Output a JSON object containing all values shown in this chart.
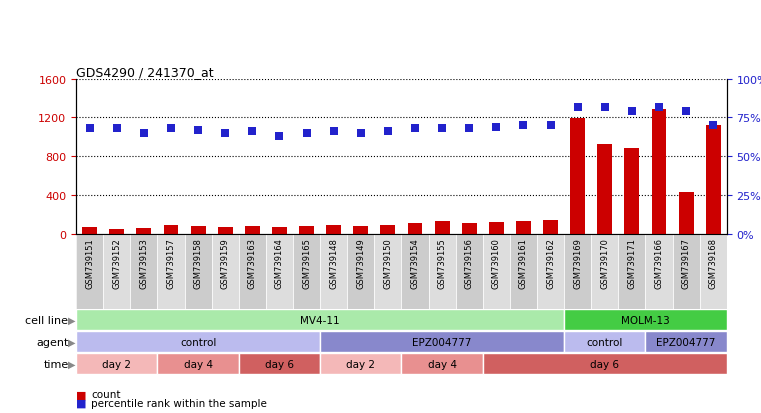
{
  "title": "GDS4290 / 241370_at",
  "samples": [
    "GSM739151",
    "GSM739152",
    "GSM739153",
    "GSM739157",
    "GSM739158",
    "GSM739159",
    "GSM739163",
    "GSM739164",
    "GSM739165",
    "GSM739148",
    "GSM739149",
    "GSM739150",
    "GSM739154",
    "GSM739155",
    "GSM739156",
    "GSM739160",
    "GSM739161",
    "GSM739162",
    "GSM739169",
    "GSM739170",
    "GSM739171",
    "GSM739166",
    "GSM739167",
    "GSM739168"
  ],
  "counts": [
    70,
    50,
    60,
    90,
    80,
    70,
    75,
    65,
    80,
    90,
    80,
    85,
    110,
    130,
    110,
    120,
    130,
    140,
    1190,
    930,
    880,
    1290,
    430,
    1120
  ],
  "percentiles": [
    68,
    68,
    65,
    68,
    67,
    65,
    66,
    63,
    65,
    66,
    65,
    66,
    68,
    68,
    68,
    69,
    70,
    70,
    82,
    82,
    79,
    82,
    79,
    70
  ],
  "bar_color": "#cc0000",
  "dot_color": "#2222cc",
  "ylim_left": [
    0,
    1600
  ],
  "ylim_right": [
    0,
    100
  ],
  "yticks_left": [
    0,
    400,
    800,
    1200,
    1600
  ],
  "yticks_right": [
    0,
    25,
    50,
    75,
    100
  ],
  "cell_line_groups": [
    {
      "label": "MV4-11",
      "start": 0,
      "end": 18,
      "color": "#aaeaaa"
    },
    {
      "label": "MOLM-13",
      "start": 18,
      "end": 24,
      "color": "#44cc44"
    }
  ],
  "agent_groups": [
    {
      "label": "control",
      "start": 0,
      "end": 9,
      "color": "#bbbbee"
    },
    {
      "label": "EPZ004777",
      "start": 9,
      "end": 18,
      "color": "#8888cc"
    },
    {
      "label": "control",
      "start": 18,
      "end": 21,
      "color": "#bbbbee"
    },
    {
      "label": "EPZ004777",
      "start": 21,
      "end": 24,
      "color": "#8888cc"
    }
  ],
  "time_groups": [
    {
      "label": "day 2",
      "start": 0,
      "end": 3,
      "color": "#f4b8b8"
    },
    {
      "label": "day 4",
      "start": 3,
      "end": 6,
      "color": "#e89090"
    },
    {
      "label": "day 6",
      "start": 6,
      "end": 9,
      "color": "#d06060"
    },
    {
      "label": "day 2",
      "start": 9,
      "end": 12,
      "color": "#f4b8b8"
    },
    {
      "label": "day 4",
      "start": 12,
      "end": 15,
      "color": "#e89090"
    },
    {
      "label": "day 6",
      "start": 15,
      "end": 24,
      "color": "#d06060"
    }
  ],
  "background_color": "#ffffff",
  "grid_color": "#000000",
  "tick_label_color_left": "#cc0000",
  "tick_label_color_right": "#2222cc",
  "bar_width": 0.55,
  "dot_size": 35,
  "dot_marker": "s",
  "row_labels": [
    "cell line",
    "agent",
    "time"
  ]
}
